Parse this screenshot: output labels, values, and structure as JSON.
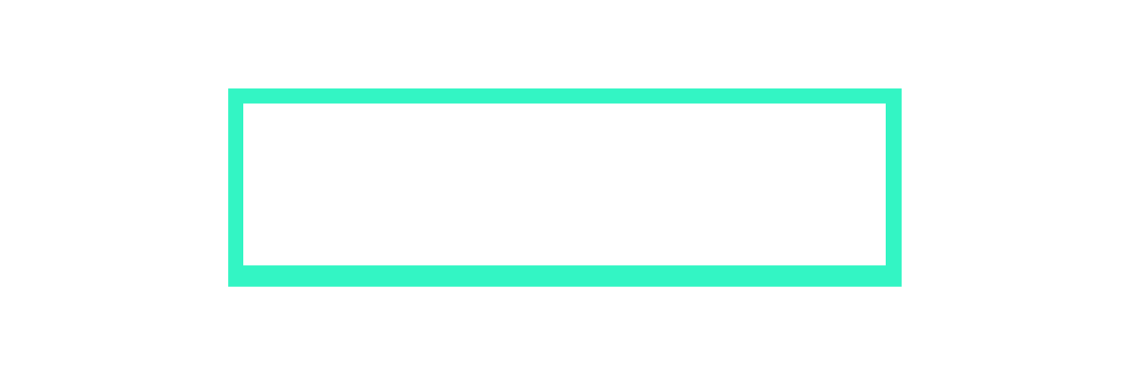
{
  "frame": {
    "name": "empty-rectangle-frame",
    "border_color": "#33f5c4",
    "fill_color": "#ffffff"
  },
  "page": {
    "background_color": "#ffffff"
  }
}
